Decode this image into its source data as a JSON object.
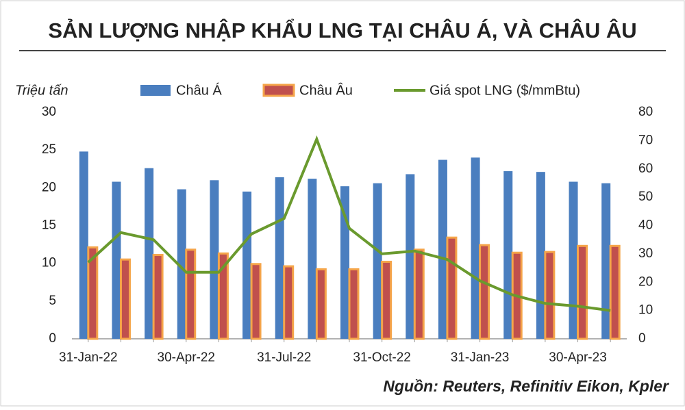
{
  "chart_data": {
    "type": "bar",
    "title": "SẢN LƯỢNG NHẬP KHẨU LNG TẠI CHÂU Á, VÀ CHÂU ÂU",
    "y_label": "Triệu tấn",
    "source": "Nguồn: Reuters, Refinitiv Eikon, Kpler",
    "categories": [
      "31-Jan-22",
      null,
      null,
      "30-Apr-22",
      null,
      null,
      "31-Jul-22",
      null,
      null,
      "31-Oct-22",
      null,
      null,
      "31-Jan-23",
      null,
      null,
      "30-Apr-23",
      null
    ],
    "series": [
      {
        "name": "Châu Á",
        "type": "bar",
        "color": "#4a7ebf",
        "values": [
          24.8,
          20.8,
          22.6,
          19.8,
          21.0,
          19.5,
          21.4,
          21.2,
          20.2,
          20.6,
          21.8,
          23.7,
          24.0,
          22.2,
          22.1,
          20.8,
          20.6
        ]
      },
      {
        "name": "Châu Âu",
        "type": "bar",
        "color": "#c0504d",
        "border_color": "#f5a54a",
        "values": [
          12.1,
          10.5,
          11.1,
          11.8,
          11.3,
          9.9,
          9.6,
          9.2,
          9.2,
          10.2,
          11.8,
          13.4,
          12.4,
          11.4,
          11.5,
          12.3,
          12.3
        ]
      },
      {
        "name": "Giá spot LNG ($/mmBtu)",
        "type": "line",
        "axis": "y2",
        "color": "#6a9a2e",
        "values": [
          27,
          37.5,
          35,
          23.5,
          23.5,
          37,
          42.5,
          70.5,
          39,
          30,
          31,
          28,
          20.5,
          15.5,
          12.5,
          11.5,
          10
        ]
      }
    ],
    "ylim": [
      0,
      30
    ],
    "yticks": [
      0,
      5,
      10,
      15,
      20,
      25,
      30
    ],
    "y2lim": [
      0,
      80
    ],
    "y2ticks": [
      0,
      10,
      20,
      30,
      40,
      50,
      60,
      70,
      80
    ]
  }
}
